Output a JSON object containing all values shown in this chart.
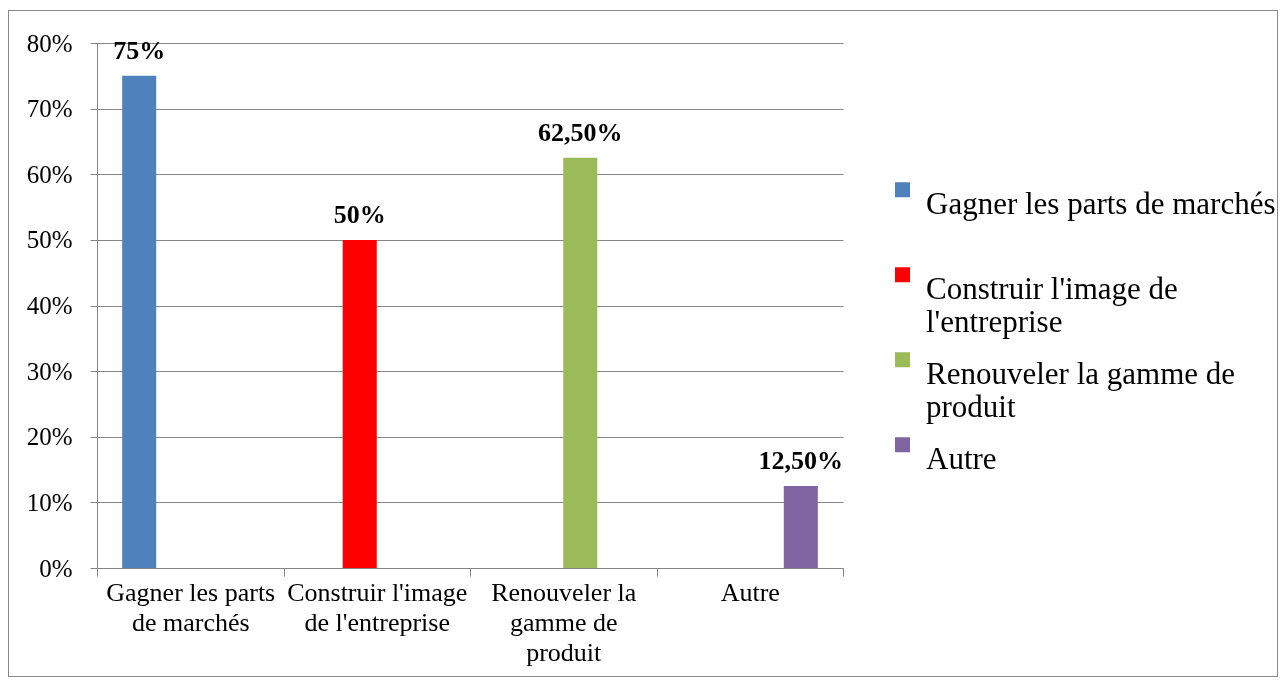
{
  "chart_data": {
    "type": "bar",
    "categories": [
      "Gagner les parts de marchés",
      "Construir l'image de l'entreprise",
      "Renouveler la gamme de produit",
      "Autre"
    ],
    "series": [
      {
        "name": "Gagner les parts de marchés",
        "color": "#4f81bd",
        "values": [
          75,
          null,
          null,
          null
        ],
        "value_labels": [
          "75%",
          null,
          null,
          null
        ]
      },
      {
        "name": "Construir l'image de l'entreprise",
        "color": "#ff0000",
        "values": [
          null,
          50,
          null,
          null
        ],
        "value_labels": [
          null,
          "50%",
          null,
          null
        ]
      },
      {
        "name": "Renouveler la gamme de produit",
        "color": "#9bbb59",
        "values": [
          null,
          null,
          62.5,
          null
        ],
        "value_labels": [
          null,
          null,
          "62,50%",
          null
        ]
      },
      {
        "name": "Autre",
        "color": "#8064a2",
        "values": [
          null,
          null,
          null,
          12.5
        ],
        "value_labels": [
          null,
          null,
          null,
          "12,50%"
        ]
      }
    ],
    "ylim": [
      0,
      80
    ],
    "yticks": [
      {
        "value": 0,
        "label": "0%"
      },
      {
        "value": 10,
        "label": "10%"
      },
      {
        "value": 20,
        "label": "20%"
      },
      {
        "value": 30,
        "label": "30%"
      },
      {
        "value": 40,
        "label": "40%"
      },
      {
        "value": 50,
        "label": "50%"
      },
      {
        "value": 60,
        "label": "60%"
      },
      {
        "value": 70,
        "label": "70%"
      },
      {
        "value": 80,
        "label": "80%"
      }
    ],
    "grid": "y",
    "legend": "right"
  }
}
